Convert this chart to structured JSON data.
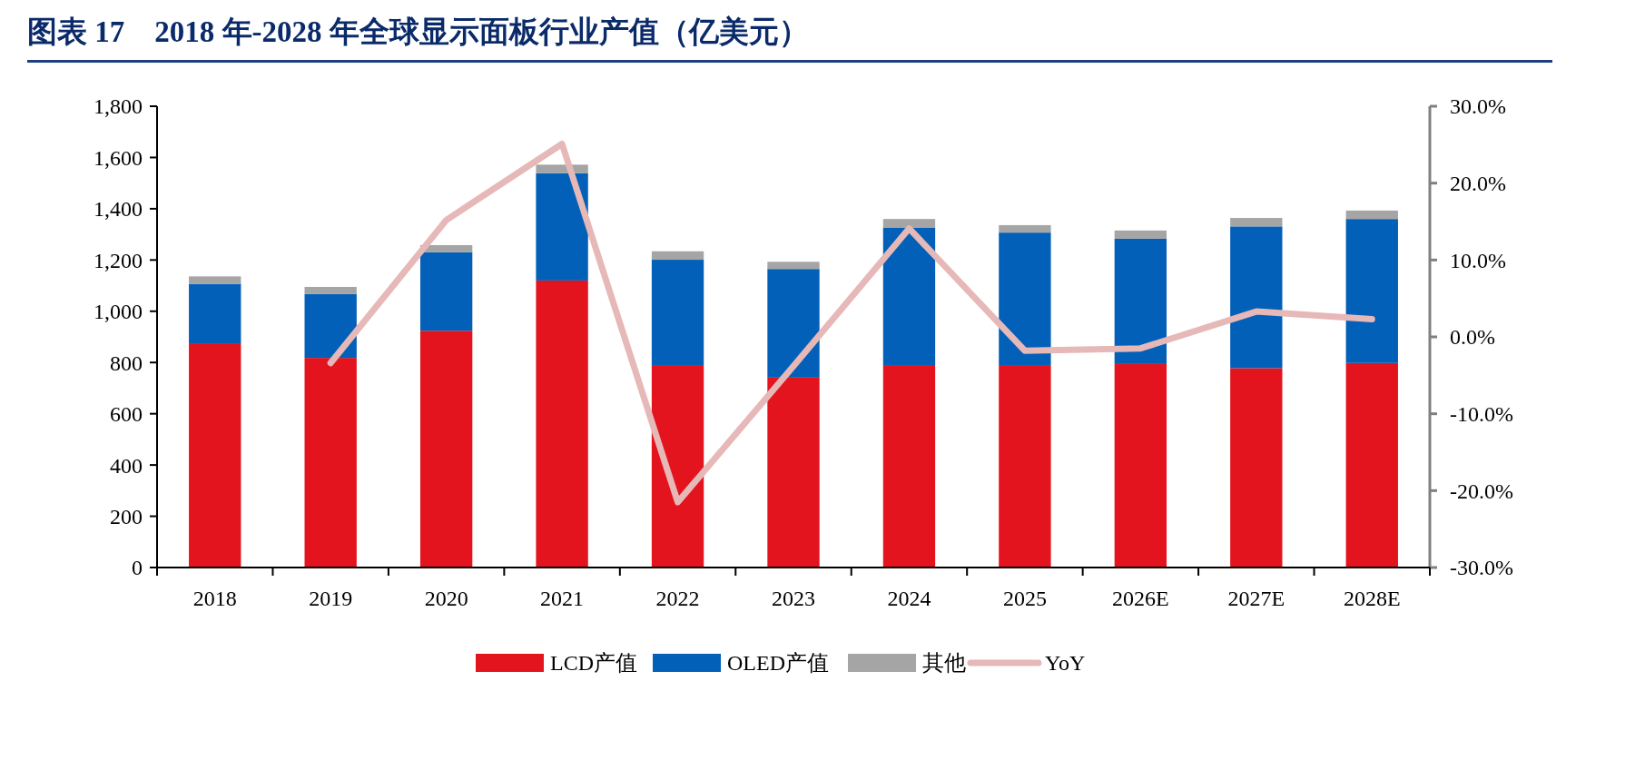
{
  "chart_data": {
    "type": "bar",
    "title": "图表 17　2018 年-2028 年全球显示面板行业产值（亿美元）",
    "categories": [
      "2018",
      "2019",
      "2020",
      "2021",
      "2022",
      "2023",
      "2024",
      "2025",
      "2026E",
      "2027E",
      "2028E"
    ],
    "stacked": true,
    "series": [
      {
        "name": "LCD产值",
        "color": "#e3141e",
        "values": [
          875,
          818,
          924,
          1120,
          790,
          741,
          790,
          790,
          794,
          778,
          798
        ]
      },
      {
        "name": "OLED产值",
        "color": "#0360b8",
        "values": [
          232,
          249,
          306,
          419,
          411,
          424,
          537,
          517,
          489,
          553,
          562
        ]
      },
      {
        "name": "其他",
        "color": "#a5a5a5",
        "values": [
          29,
          28,
          28,
          33,
          33,
          28,
          33,
          29,
          32,
          33,
          33
        ]
      },
      {
        "name": "YoY",
        "type": "line",
        "axis": "y2",
        "color": "#e6b8b7",
        "values": [
          null,
          -3.4,
          15.2,
          25.1,
          -21.5,
          -3.8,
          14.1,
          -1.8,
          -1.5,
          3.3,
          2.3
        ]
      }
    ],
    "ylim": [
      0,
      1800
    ],
    "yticks": [
      {
        "value": 0,
        "label": "0"
      },
      {
        "value": 200,
        "label": "200"
      },
      {
        "value": 400,
        "label": "400"
      },
      {
        "value": 600,
        "label": "600"
      },
      {
        "value": 800,
        "label": "800"
      },
      {
        "value": 1000,
        "label": "1,000"
      },
      {
        "value": 1200,
        "label": "1,200"
      },
      {
        "value": 1400,
        "label": "1,400"
      },
      {
        "value": 1600,
        "label": "1,600"
      },
      {
        "value": 1800,
        "label": "1,800"
      }
    ],
    "y2lim": [
      -30,
      30
    ],
    "y2ticks": [
      {
        "value": -30,
        "label": "-30.0%"
      },
      {
        "value": -20,
        "label": "-20.0%"
      },
      {
        "value": -10,
        "label": "-10.0%"
      },
      {
        "value": 0,
        "label": "0.0%"
      },
      {
        "value": 10,
        "label": "10.0%"
      },
      {
        "value": 20,
        "label": "20.0%"
      },
      {
        "value": 30,
        "label": "30.0%"
      }
    ],
    "grid": false,
    "legend": "bottom",
    "marker": "none"
  }
}
